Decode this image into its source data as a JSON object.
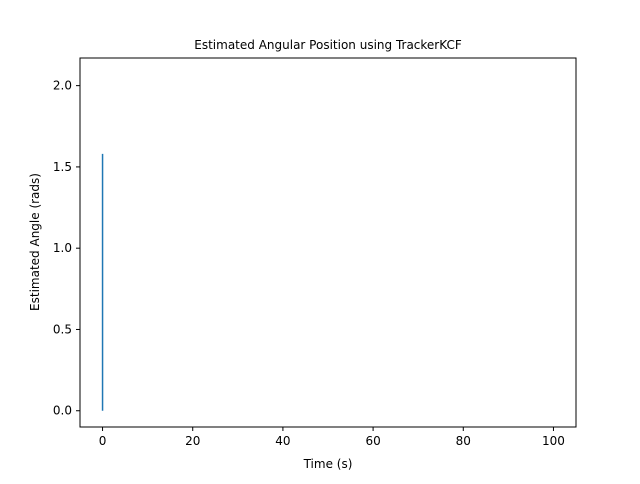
{
  "chart_data": {
    "type": "line",
    "title": "Estimated Angular Position using TrackerKCF",
    "xlabel": "Time (s)",
    "ylabel": "Estimated Angle (rads)",
    "xlim": [
      -5,
      105
    ],
    "ylim": [
      -0.1,
      2.17
    ],
    "x_ticks": [
      0,
      20,
      40,
      60,
      80,
      100
    ],
    "y_ticks": [
      0.0,
      0.5,
      1.0,
      1.5,
      2.0
    ],
    "x_tick_labels": [
      "0",
      "20",
      "40",
      "60",
      "80",
      "100"
    ],
    "y_tick_labels": [
      "0.0",
      "0.5",
      "1.0",
      "1.5",
      "2.0"
    ],
    "grid": false,
    "series": [
      {
        "color": "#1f77b4",
        "x": [
          0,
          0
        ],
        "y": [
          0.0,
          1.58
        ]
      }
    ]
  }
}
